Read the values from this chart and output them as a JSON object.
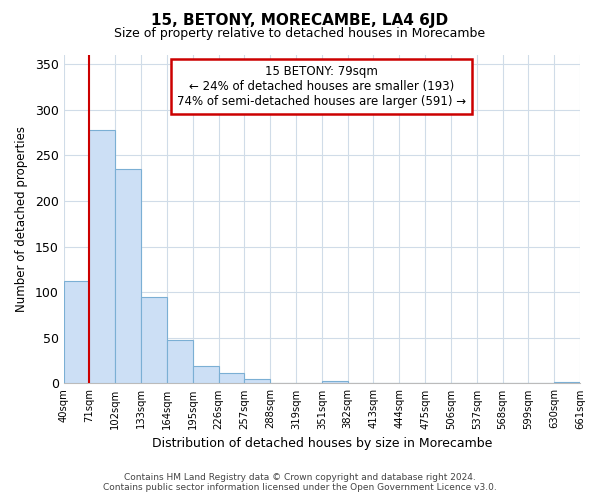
{
  "title": "15, BETONY, MORECAMBE, LA4 6JD",
  "subtitle": "Size of property relative to detached houses in Morecambe",
  "xlabel": "Distribution of detached houses by size in Morecambe",
  "ylabel": "Number of detached properties",
  "bar_values": [
    112,
    278,
    235,
    95,
    48,
    19,
    11,
    5,
    0,
    0,
    3,
    0,
    0,
    0,
    0,
    0,
    0,
    0,
    0,
    2
  ],
  "bin_labels": [
    "40sqm",
    "71sqm",
    "102sqm",
    "133sqm",
    "164sqm",
    "195sqm",
    "226sqm",
    "257sqm",
    "288sqm",
    "319sqm",
    "351sqm",
    "382sqm",
    "413sqm",
    "444sqm",
    "475sqm",
    "506sqm",
    "537sqm",
    "568sqm",
    "599sqm",
    "630sqm",
    "661sqm"
  ],
  "bar_color": "#ccdff5",
  "bar_edge_color": "#7bafd4",
  "vline_x": 1,
  "vline_color": "#cc0000",
  "annotation_title": "15 BETONY: 79sqm",
  "annotation_line1": "← 24% of detached houses are smaller (193)",
  "annotation_line2": "74% of semi-detached houses are larger (591) →",
  "annotation_box_edge": "#cc0000",
  "ylim": [
    0,
    360
  ],
  "yticks": [
    0,
    50,
    100,
    150,
    200,
    250,
    300,
    350
  ],
  "footer1": "Contains HM Land Registry data © Crown copyright and database right 2024.",
  "footer2": "Contains public sector information licensed under the Open Government Licence v3.0.",
  "background_color": "#ffffff",
  "grid_color": "#d0dce8"
}
